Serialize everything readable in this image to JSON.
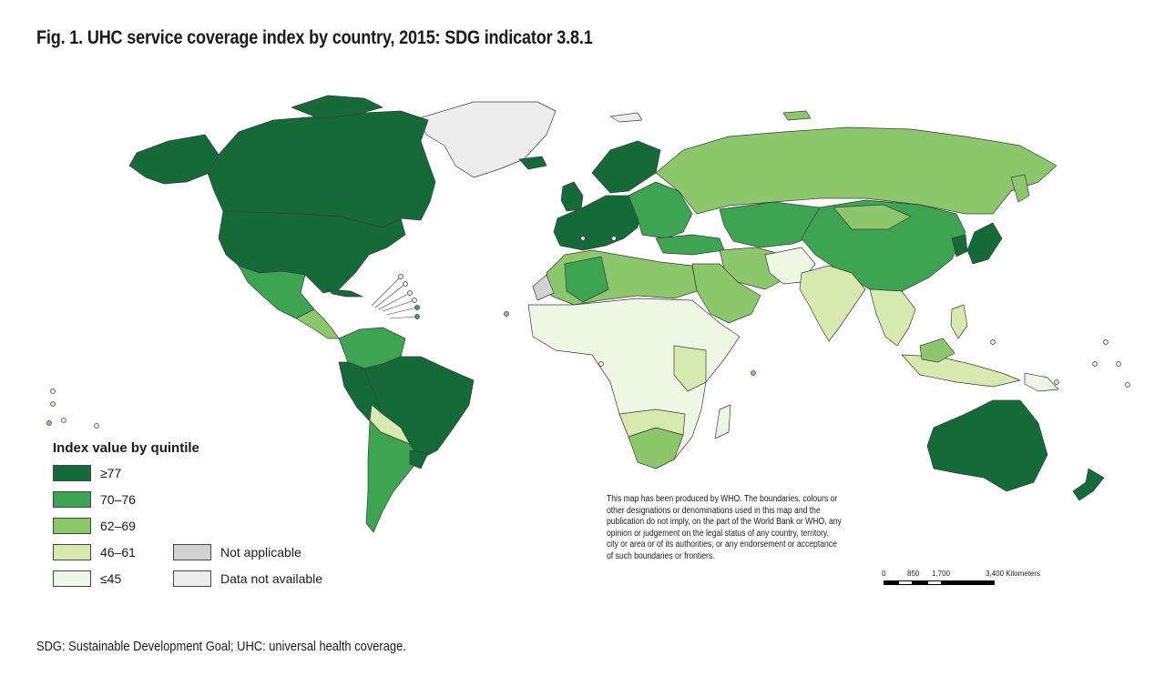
{
  "title": "Fig. 1. UHC service coverage index by country, 2015: SDG indicator 3.8.1",
  "colors": {
    "q1": "#146b37",
    "q2": "#3da451",
    "q3": "#8cc86b",
    "q4": "#d6eab0",
    "q5": "#eef6e4",
    "not_applicable": "#d2d2d2",
    "no_data": "#ededed",
    "ocean": "#ffffff"
  },
  "legend": {
    "title": "Index value by quintile",
    "items": [
      {
        "label": "≥77",
        "color": "#146b37"
      },
      {
        "label": "70–76",
        "color": "#3da451"
      },
      {
        "label": "62–69",
        "color": "#8cc86b"
      },
      {
        "label": "46–61",
        "color": "#d6eab0"
      },
      {
        "label": "≤45",
        "color": "#eef6e4"
      }
    ],
    "extra": [
      {
        "label": "Not applicable",
        "color": "#d2d2d2"
      },
      {
        "label": "Data not available",
        "color": "#ededed"
      }
    ]
  },
  "disclaimer": "This map has been produced by WHO. The boundaries, colours or other designations or denominations used in this map and the publication do not imply, on the part of the World Bank or WHO, any opinion or judgement on the legal status of any country, territory, city or area or of its authorities, or any endorsement or acceptance of such boundaries or frontiers.",
  "scale": {
    "labels": [
      "0",
      "850",
      "1,700",
      "3,400 Kilometers"
    ]
  },
  "footnote": "SDG: Sustainable Development Goal; UHC: universal health coverage."
}
